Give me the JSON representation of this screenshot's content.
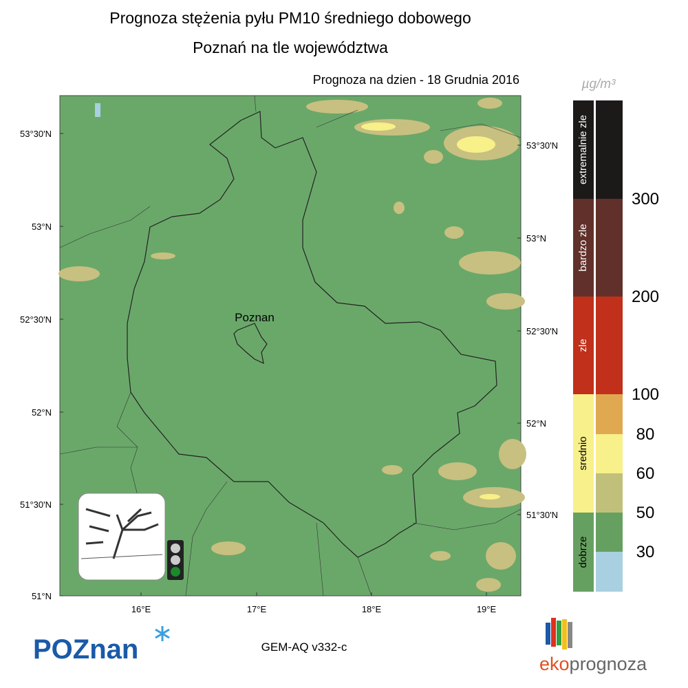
{
  "header": {
    "title": "Prognoza stężenia pyłu PM10 średniego dobowego",
    "subtitle": "Poznań na tle województwa",
    "date": "Prognoza na dzien -  18 Grudnia 2016"
  },
  "map": {
    "city": "Poznan",
    "left_labels": [
      "53°30'N",
      "53°N",
      "52°30'N",
      "52°N",
      "51°30'N",
      "51°N"
    ],
    "right_labels": [
      "53°30'N",
      "53°N",
      "52°30'N",
      "52°N",
      "51°30'N"
    ],
    "bottom_labels": [
      "16°E",
      "17°E",
      "18°E",
      "19°E"
    ]
  },
  "legend": {
    "unit": "µg/m³",
    "categories": [
      {
        "label": "extremalnie zle",
        "color": "#1c1a18"
      },
      {
        "label": "bardzo zle",
        "color": "#61302a"
      },
      {
        "label": "zle",
        "color": "#c0301a"
      },
      {
        "label": "srednio",
        "color": "#f8f08a"
      },
      {
        "label": "dobrze",
        "color": "#66a060"
      }
    ],
    "thresholds": [
      300,
      200,
      100,
      80,
      60,
      50,
      30
    ],
    "scale_colors": [
      "#1c1a18",
      "#61302a",
      "#c0301a",
      "#e0a850",
      "#f8f08a",
      "#c0c07a",
      "#66a060",
      "#a8d0e0"
    ]
  },
  "footer": {
    "logo": "POZnan",
    "model": "GEM-AQ v332-c",
    "brand_1": "eko",
    "brand_2": "prognoza"
  }
}
